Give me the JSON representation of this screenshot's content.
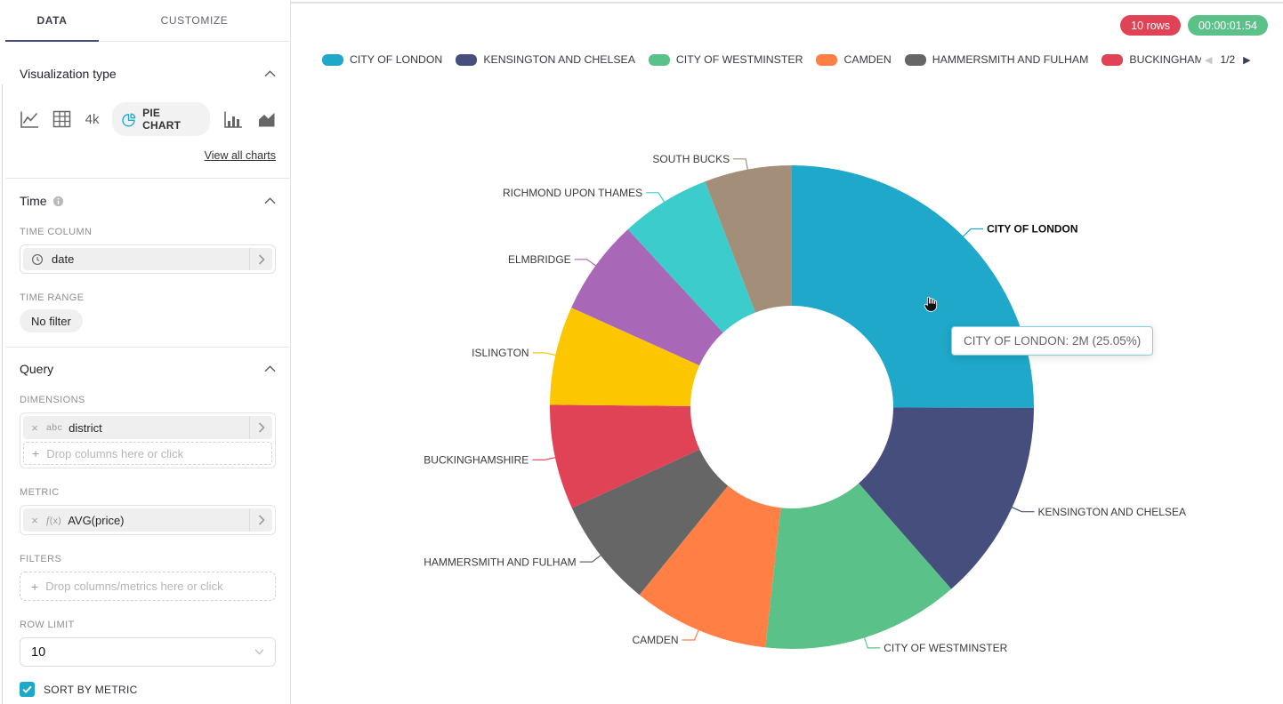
{
  "sidebar": {
    "tabs": [
      {
        "label": "DATA"
      },
      {
        "label": "CUSTOMIZE"
      }
    ],
    "viz_section": {
      "title": "Visualization type",
      "big_number_icon_text": "4k",
      "selected_viz_label": "PIE CHART",
      "view_all_label": "View all charts"
    },
    "time_section": {
      "title": "Time",
      "time_column_label": "TIME COLUMN",
      "time_column_value": "date",
      "time_range_label": "TIME RANGE",
      "time_range_value": "No filter"
    },
    "query_section": {
      "title": "Query",
      "dimensions_label": "DIMENSIONS",
      "dimension_pill": {
        "type": "abc",
        "value": "district"
      },
      "dimensions_placeholder": "Drop columns here or click",
      "metric_label": "METRIC",
      "metric_pill": {
        "type_suffix": "(x)",
        "value": "AVG(price)"
      },
      "filters_label": "FILTERS",
      "filters_placeholder": "Drop columns/metrics here or click",
      "row_limit_label": "ROW LIMIT",
      "row_limit_value": "10",
      "sort_label": "SORT BY METRIC",
      "sort_checked": true
    }
  },
  "header": {
    "rows_badge": "10 rows",
    "timer_badge": "00:00:01.54"
  },
  "legend": {
    "pagination": "1/2"
  },
  "tooltip": {
    "text": "CITY OF LONDON: 2M (25.05%)"
  },
  "colors": {
    "accent": "#1FA8C9",
    "tab_underline": "#454E7C",
    "rows_badge_bg": "#E04355",
    "timer_badge_bg": "#5AC189",
    "checkbox_bg": "#1FA8C9"
  },
  "chart_data": {
    "type": "pie",
    "donut": true,
    "legend_position": "top",
    "categories": [
      "CITY OF LONDON",
      "KENSINGTON AND CHELSEA",
      "CITY OF WESTMINSTER",
      "CAMDEN",
      "HAMMERSMITH AND FULHAM",
      "BUCKINGHAMSHIRE",
      "ISLINGTON",
      "ELMBRIDGE",
      "RICHMOND UPON THAMES",
      "SOUTH BUCKS"
    ],
    "values_pct": [
      25.05,
      13.5,
      13.2,
      9.1,
      7.3,
      7.0,
      6.6,
      6.4,
      6.0,
      5.85
    ],
    "colors": [
      "#1FA8C9",
      "#454E7C",
      "#5AC189",
      "#FF7F44",
      "#666666",
      "#E04355",
      "#FCC700",
      "#A868B7",
      "#3CCCCB",
      "#A38F79"
    ],
    "metric": "AVG(price)",
    "dimension": "district",
    "hovered_index": 0,
    "hovered": {
      "label": "CITY OF LONDON",
      "value": "2M",
      "pct": "25.05%"
    }
  }
}
